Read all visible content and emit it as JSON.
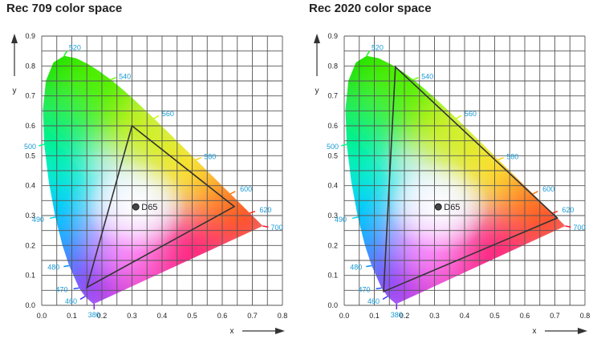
{
  "chart_data": [
    {
      "type": "scatter",
      "title": "Rec 709 color space",
      "xlabel": "x",
      "ylabel": "y",
      "xlim": [
        0,
        0.8
      ],
      "ylim": [
        0,
        0.9
      ],
      "x_ticks": [
        "0.0",
        "0.1",
        "0.2",
        "0.3",
        "0.4",
        "0.5",
        "0.6",
        "0.7",
        "0.8"
      ],
      "y_ticks": [
        "0.0",
        "0.1",
        "0.2",
        "0.3",
        "0.4",
        "0.5",
        "0.6",
        "0.7",
        "0.8",
        "0.9"
      ],
      "grid": true,
      "spectral_locus": [
        {
          "label": "380",
          "x": 0.1741,
          "y": 0.005
        },
        {
          "label": "460",
          "x": 0.144,
          "y": 0.0297
        },
        {
          "label": "470",
          "x": 0.1241,
          "y": 0.0578
        },
        {
          "label": "480",
          "x": 0.0913,
          "y": 0.1327
        },
        {
          "label": "490",
          "x": 0.0454,
          "y": 0.295
        },
        {
          "label": "500",
          "x": 0.0082,
          "y": 0.5384
        },
        {
          "label": "520",
          "x": 0.0743,
          "y": 0.8338
        },
        {
          "label": "540",
          "x": 0.2296,
          "y": 0.7543
        },
        {
          "label": "560",
          "x": 0.3731,
          "y": 0.6245
        },
        {
          "label": "580",
          "x": 0.5125,
          "y": 0.4866
        },
        {
          "label": "600",
          "x": 0.627,
          "y": 0.3725
        },
        {
          "label": "620",
          "x": 0.6915,
          "y": 0.3083
        },
        {
          "label": "700",
          "x": 0.7347,
          "y": 0.2653
        }
      ],
      "gamut": {
        "red": [
          0.64,
          0.33
        ],
        "green": [
          0.3,
          0.6
        ],
        "blue": [
          0.15,
          0.06
        ]
      },
      "white_point": {
        "label": "D65",
        "x": 0.3127,
        "y": 0.329
      }
    },
    {
      "type": "scatter",
      "title": "Rec 2020 color space",
      "xlabel": "x",
      "ylabel": "y",
      "xlim": [
        0,
        0.8
      ],
      "ylim": [
        0,
        0.9
      ],
      "x_ticks": [
        "0.0",
        "0.1",
        "0.2",
        "0.3",
        "0.4",
        "0.5",
        "0.6",
        "0.7",
        "0.8"
      ],
      "y_ticks": [
        "0.0",
        "0.1",
        "0.2",
        "0.3",
        "0.4",
        "0.5",
        "0.6",
        "0.7",
        "0.8",
        "0.9"
      ],
      "grid": true,
      "spectral_locus": [
        {
          "label": "380",
          "x": 0.1741,
          "y": 0.005
        },
        {
          "label": "460",
          "x": 0.144,
          "y": 0.0297
        },
        {
          "label": "470",
          "x": 0.1241,
          "y": 0.0578
        },
        {
          "label": "480",
          "x": 0.0913,
          "y": 0.1327
        },
        {
          "label": "490",
          "x": 0.0454,
          "y": 0.295
        },
        {
          "label": "500",
          "x": 0.0082,
          "y": 0.5384
        },
        {
          "label": "520",
          "x": 0.0743,
          "y": 0.8338
        },
        {
          "label": "540",
          "x": 0.2296,
          "y": 0.7543
        },
        {
          "label": "560",
          "x": 0.3731,
          "y": 0.6245
        },
        {
          "label": "580",
          "x": 0.5125,
          "y": 0.4866
        },
        {
          "label": "600",
          "x": 0.627,
          "y": 0.3725
        },
        {
          "label": "620",
          "x": 0.6915,
          "y": 0.3083
        },
        {
          "label": "700",
          "x": 0.7347,
          "y": 0.2653
        }
      ],
      "gamut": {
        "red": [
          0.708,
          0.292
        ],
        "green": [
          0.17,
          0.797
        ],
        "blue": [
          0.131,
          0.046
        ]
      },
      "white_point": {
        "label": "D65",
        "x": 0.3127,
        "y": 0.329
      }
    }
  ]
}
